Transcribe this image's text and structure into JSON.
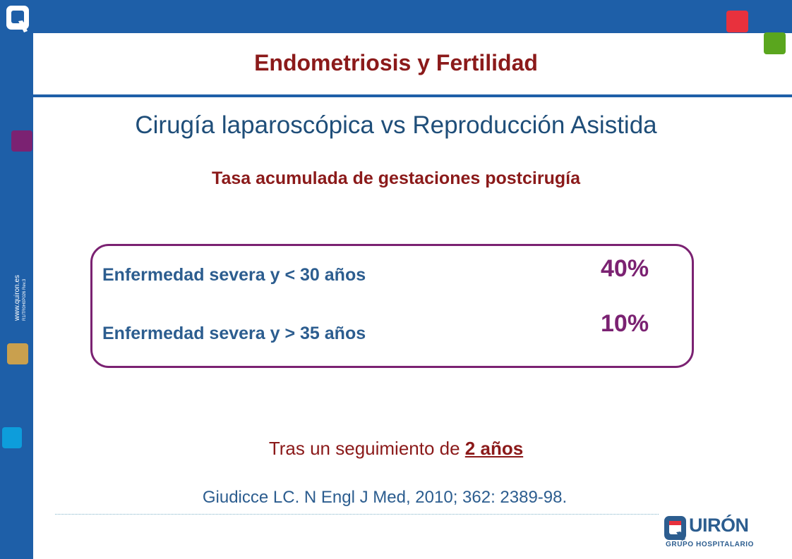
{
  "header": {
    "title": "Endometriosis y Fertilidad"
  },
  "slide": {
    "subtitle": "Cirugía laparoscópica vs Reproducción Asistida",
    "section_heading": "Tasa acumulada de gestaciones postcirugía",
    "results": [
      {
        "label": "Enfermedad severa y < 30 años",
        "value": "40%"
      },
      {
        "label": "Enfermedad severa y > 35 años",
        "value": "10%"
      }
    ],
    "followup_prefix": "Tras un seguimiento de ",
    "followup_emphasis": "2 años",
    "citation": "Giudicce LC. N Engl J Med, 2010; 362: 2389-98."
  },
  "sidebar": {
    "website": "www.quiron.es",
    "code": "R1/TR0H0P026 Rev.3"
  },
  "brand": {
    "name": "UIRÓN",
    "subtitle": "GRUPO HOSPITALARIO"
  },
  "colors": {
    "frame_blue": "#1e5fa8",
    "title_red": "#8b1a1a",
    "accent_purple": "#7b2272",
    "text_blue": "#2c5d8f"
  }
}
